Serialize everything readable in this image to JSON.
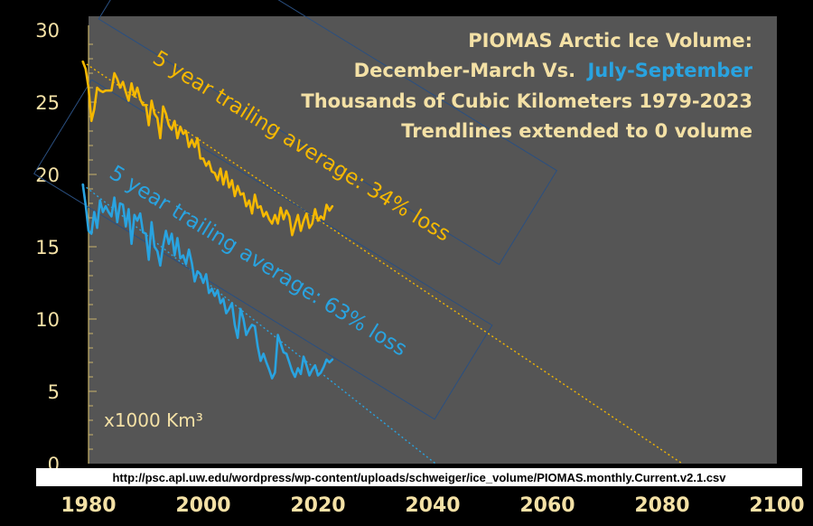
{
  "chart_data": {
    "type": "line",
    "title_lines": [
      "PIOMAS Arctic Ice Volume:",
      "December-March Vs.",
      "July-September",
      "Thousands of Cubic Kilometers 1979-2023",
      "Trendlines extended to 0 volume"
    ],
    "unit_label": "x1000 Km³",
    "source": "http://psc.apl.uw.edu/wordpress/wp-content/uploads/schweiger/ice_volume/PIOMAS.monthly.Current.v2.1.csv",
    "xlim": [
      1980,
      2100
    ],
    "ylim": [
      0,
      30
    ],
    "x_ticks": [
      "1980",
      "2000",
      "2020",
      "2040",
      "2060",
      "2080",
      "2100"
    ],
    "y_ticks": [
      "0",
      "5",
      "10",
      "15",
      "20",
      "25",
      "30"
    ],
    "grid": false,
    "colors": {
      "background": "#555555",
      "frame": "#000000",
      "text": "#f4e1a6",
      "winter": "#f5b800",
      "summer": "#29a3e0",
      "annotation_box": "#2a4f80"
    },
    "series": [
      {
        "name": "December-March",
        "color": "#f5b800",
        "x": [
          1979.0,
          1979.5,
          1980.0,
          1980.5,
          1981.0,
          1981.5,
          1982.0,
          1982.5,
          1983.0,
          1983.5,
          1984.0,
          1984.5,
          1985.0,
          1985.5,
          1986.0,
          1986.5,
          1987.0,
          1987.5,
          1988.0,
          1988.5,
          1989.0,
          1989.5,
          1990.0,
          1990.5,
          1991.0,
          1991.5,
          1992.0,
          1992.5,
          1993.0,
          1993.5,
          1994.0,
          1994.5,
          1995.0,
          1995.5,
          1996.0,
          1996.5,
          1997.0,
          1997.5,
          1998.0,
          1998.5,
          1999.0,
          1999.5,
          2000.0,
          2000.5,
          2001.0,
          2001.5,
          2002.0,
          2002.5,
          2003.0,
          2003.5,
          2004.0,
          2004.5,
          2005.0,
          2005.5,
          2006.0,
          2006.5,
          2007.0,
          2007.5,
          2008.0,
          2008.5,
          2009.0,
          2009.5,
          2010.0,
          2010.5,
          2011.0,
          2011.5,
          2012.0,
          2012.5,
          2013.0,
          2013.5,
          2014.0,
          2014.5,
          2015.0,
          2015.5,
          2016.0,
          2016.5,
          2017.0,
          2017.5,
          2018.0,
          2018.5,
          2019.0,
          2019.5,
          2020.0,
          2020.5,
          2021.0,
          2021.5,
          2022.0,
          2022.5
        ],
        "values": [
          27.8,
          27.3,
          26.0,
          23.7,
          24.5,
          26.0,
          25.8,
          25.7,
          25.8,
          25.8,
          25.8,
          27.0,
          26.6,
          26.0,
          26.4,
          25.7,
          25.1,
          26.3,
          25.4,
          26.0,
          25.2,
          24.8,
          24.8,
          23.4,
          25.1,
          24.2,
          23.9,
          22.5,
          24.7,
          24.2,
          23.4,
          23.1,
          23.7,
          22.5,
          23.3,
          22.8,
          23.0,
          21.9,
          22.4,
          21.9,
          22.5,
          21.1,
          21.1,
          20.6,
          20.9,
          20.2,
          20.1,
          19.6,
          20.4,
          19.3,
          20.2,
          19.1,
          19.6,
          18.5,
          19.2,
          18.6,
          18.7,
          17.8,
          18.2,
          17.3,
          18.6,
          17.7,
          17.8,
          17.1,
          17.4,
          16.9,
          16.6,
          17.2,
          16.6,
          17.7,
          16.9,
          17.5,
          17.1,
          15.8,
          16.5,
          17.2,
          16.1,
          16.8,
          17.3,
          16.3,
          16.6,
          17.6,
          16.8,
          17.1,
          16.9,
          17.9,
          17.5,
          17.8
        ]
      },
      {
        "name": "July-September",
        "color": "#29a3e0",
        "x": [
          1979.0,
          1979.5,
          1980.0,
          1980.5,
          1981.0,
          1981.5,
          1982.0,
          1982.5,
          1983.0,
          1983.5,
          1984.0,
          1984.5,
          1985.0,
          1985.5,
          1986.0,
          1986.5,
          1987.0,
          1987.5,
          1988.0,
          1988.5,
          1989.0,
          1989.5,
          1990.0,
          1990.5,
          1991.0,
          1991.5,
          1992.0,
          1992.5,
          1993.0,
          1993.5,
          1994.0,
          1994.5,
          1995.0,
          1995.5,
          1996.0,
          1996.5,
          1997.0,
          1997.5,
          1998.0,
          1998.5,
          1999.0,
          1999.5,
          2000.0,
          2000.5,
          2001.0,
          2001.5,
          2002.0,
          2002.5,
          2003.0,
          2003.5,
          2004.0,
          2004.5,
          2005.0,
          2005.5,
          2006.0,
          2006.5,
          2007.0,
          2007.5,
          2008.0,
          2008.5,
          2009.0,
          2009.5,
          2010.0,
          2010.5,
          2011.0,
          2011.5,
          2012.0,
          2012.5,
          2013.0,
          2013.5,
          2014.0,
          2014.5,
          2015.0,
          2015.5,
          2016.0,
          2016.5,
          2017.0,
          2017.5,
          2018.0,
          2018.5,
          2019.0,
          2019.5,
          2020.0,
          2020.5,
          2021.0,
          2021.5,
          2022.0,
          2022.5
        ],
        "values": [
          19.3,
          17.9,
          16.1,
          15.9,
          17.4,
          16.3,
          18.2,
          17.4,
          17.8,
          17.4,
          17.1,
          18.4,
          16.7,
          18.0,
          17.9,
          16.4,
          17.6,
          15.2,
          17.2,
          16.8,
          17.3,
          16.0,
          15.9,
          14.1,
          16.7,
          15.0,
          14.7,
          13.7,
          15.1,
          16.1,
          15.2,
          15.9,
          14.4,
          15.6,
          14.2,
          14.4,
          13.8,
          14.8,
          13.9,
          12.6,
          13.3,
          13.1,
          12.5,
          13.1,
          11.8,
          12.1,
          11.6,
          12.0,
          11.1,
          11.4,
          10.4,
          10.7,
          11.1,
          9.6,
          8.7,
          10.7,
          10.0,
          8.9,
          9.3,
          9.6,
          9.5,
          8.1,
          7.1,
          7.6,
          7.0,
          6.5,
          5.9,
          6.3,
          8.9,
          8.3,
          7.7,
          7.6,
          7.0,
          6.4,
          6.0,
          6.6,
          6.2,
          7.4,
          6.8,
          6.1,
          6.5,
          6.8,
          6.1,
          6.3,
          6.7,
          7.2,
          7.0,
          7.2
        ]
      }
    ],
    "trendlines": [
      {
        "series": "December-March",
        "color": "#f5b800",
        "x": [
          1979,
          2083.5
        ],
        "values": [
          27.8,
          0
        ]
      },
      {
        "series": "July-September",
        "color": "#29a3e0",
        "x": [
          1979,
          2040.5
        ],
        "values": [
          19.3,
          0
        ]
      }
    ],
    "annotations": [
      {
        "series": "December-March",
        "text": "5 year trailing average: 34% loss",
        "color": "#f5b800"
      },
      {
        "series": "July-September",
        "text": "5 year trailing average: 63% loss",
        "color": "#29a3e0"
      }
    ]
  }
}
